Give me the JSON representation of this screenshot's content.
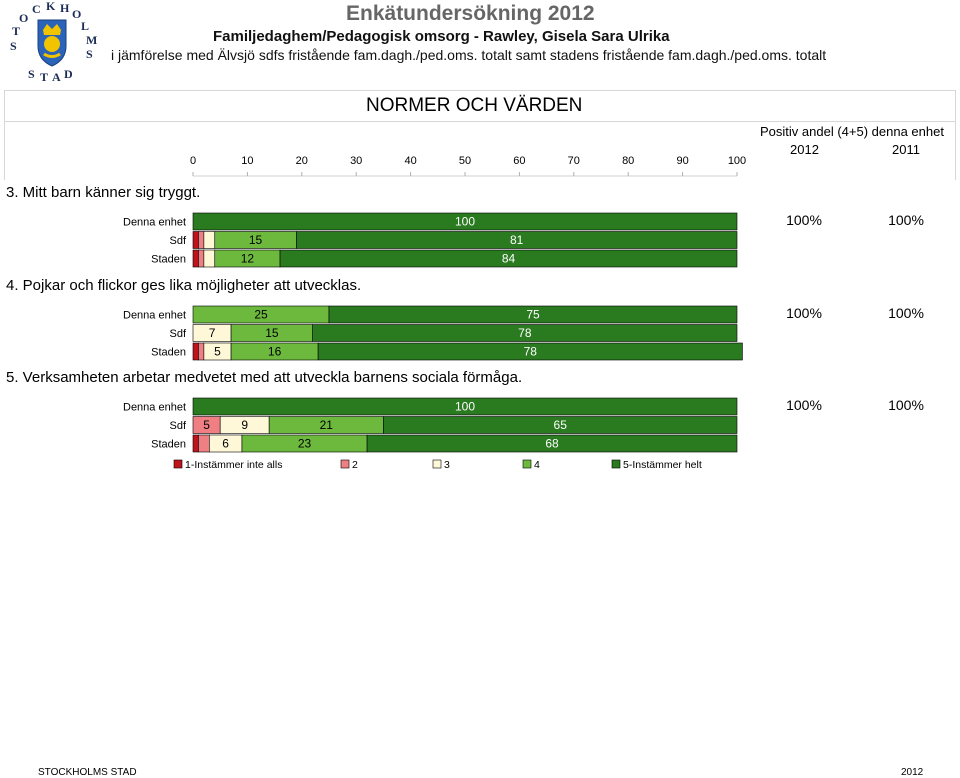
{
  "header": {
    "title": "Enkätundersökning 2012",
    "unit": "Familjedaghem/Pedagogisk omsorg - Rawley, Gisela Sara Ulrika",
    "comparison": "i jämförelse med Älvsjö sdfs fristående fam.dagh./ped.oms. totalt samt stadens fristående fam.dagh./ped.oms. totalt",
    "logo_text": "STOCKHOLMS STAD"
  },
  "section_title": "NORMER OCH VÄRDEN",
  "positive_share": {
    "heading": "Positiv andel (4+5) denna enhet",
    "year_current": "2012",
    "year_previous": "2011"
  },
  "footer": {
    "left": "STOCKHOLMS STAD",
    "right": "2012"
  },
  "colors": {
    "1": "#c0141c",
    "2": "#ef7f82",
    "3": "#fef8d8",
    "4": "#6cb93e",
    "5": "#2a7a20"
  },
  "chart_data": {
    "type": "bar",
    "stacked": true,
    "orientation": "horizontal",
    "xlim": [
      0,
      100
    ],
    "xticks": [
      0,
      10,
      20,
      30,
      40,
      50,
      60,
      70,
      80,
      90,
      100
    ],
    "legend": [
      "1-Instämmer inte alls",
      "2",
      "3",
      "4",
      "5-Instämmer helt"
    ],
    "legend_position": "bottom",
    "questions": [
      {
        "title": "3. Mitt barn känner sig tryggt.",
        "positive": [
          "100%",
          "100%"
        ],
        "rows": [
          {
            "label": "Denna enhet",
            "values": [
              0,
              0,
              0,
              0,
              100
            ],
            "labels": [
              "",
              "",
              "",
              "",
              "100"
            ]
          },
          {
            "label": "Sdf",
            "values": [
              1,
              1,
              2,
              15,
              81
            ],
            "labels": [
              "",
              "",
              "",
              "15",
              "81"
            ]
          },
          {
            "label": "Staden",
            "values": [
              1,
              1,
              2,
              12,
              84
            ],
            "labels": [
              "",
              "",
              "",
              "12",
              "84"
            ]
          }
        ]
      },
      {
        "title": "4. Pojkar och flickor ges lika möjligheter att utvecklas.",
        "positive": [
          "100%",
          "100%"
        ],
        "rows": [
          {
            "label": "Denna enhet",
            "values": [
              0,
              0,
              0,
              25,
              75
            ],
            "labels": [
              "",
              "",
              "",
              "25",
              "75"
            ]
          },
          {
            "label": "Sdf",
            "values": [
              0,
              0,
              7,
              15,
              78
            ],
            "labels": [
              "",
              "",
              "7",
              "15",
              "78"
            ]
          },
          {
            "label": "Staden",
            "values": [
              1,
              1,
              5,
              16,
              78
            ],
            "labels": [
              "",
              "",
              "5",
              "16",
              "78"
            ]
          }
        ]
      },
      {
        "title": "5. Verksamheten arbetar medvetet med att utveckla barnens sociala förmåga.",
        "positive": [
          "100%",
          "100%"
        ],
        "rows": [
          {
            "label": "Denna enhet",
            "values": [
              0,
              0,
              0,
              0,
              100
            ],
            "labels": [
              "",
              "",
              "",
              "",
              "100"
            ]
          },
          {
            "label": "Sdf",
            "values": [
              0,
              5,
              9,
              21,
              65
            ],
            "labels": [
              "",
              "5",
              "9",
              "21",
              "65"
            ]
          },
          {
            "label": "Staden",
            "values": [
              1,
              2,
              6,
              23,
              68
            ],
            "labels": [
              "",
              "",
              "6",
              "23",
              "68"
            ]
          }
        ]
      }
    ]
  }
}
